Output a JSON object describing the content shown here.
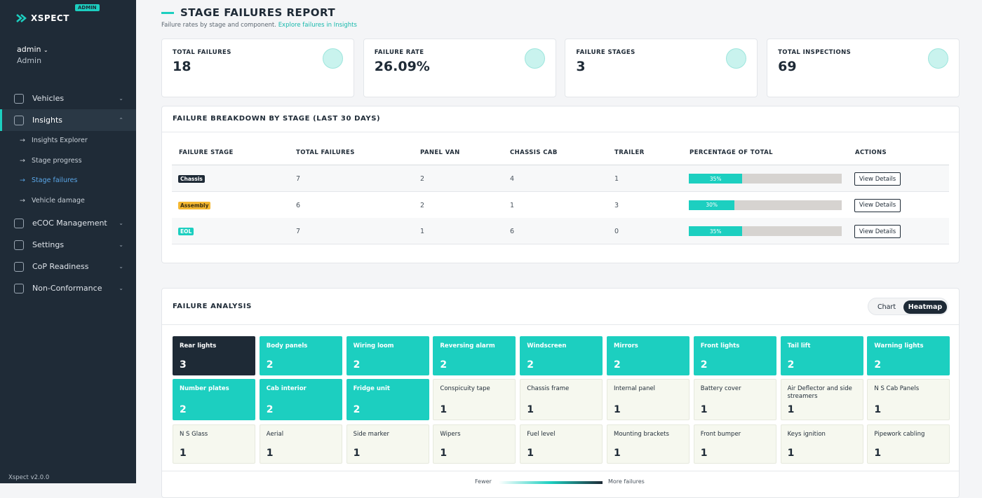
{
  "sidebar": {
    "brand": "XSPECT",
    "badge": "ADMIN",
    "user": "admin",
    "role": "Admin",
    "nav": [
      {
        "label": "Vehicles"
      },
      {
        "label": "Insights",
        "children": [
          "Insights Explorer",
          "Stage progress",
          "Stage failures",
          "Vehicle damage"
        ]
      },
      {
        "label": "eCOC Management"
      },
      {
        "label": "Settings"
      },
      {
        "label": "CoP Readiness"
      },
      {
        "label": "Non-Conformance"
      }
    ],
    "version": "Xspect v2.0.0"
  },
  "header": {
    "title": "STAGE FAILURES REPORT",
    "subtitle": "Failure rates by stage and component.",
    "link": "Explore failures in Insights"
  },
  "kpis": [
    {
      "label": "TOTAL FAILURES",
      "value": 18
    },
    {
      "label": "FAILURE RATE",
      "value": "26.09%"
    },
    {
      "label": "FAILURE STAGES",
      "value": 3
    },
    {
      "label": "TOTAL INSPECTIONS",
      "value": 69
    }
  ],
  "table": {
    "title": "FAILURE BREAKDOWN BY STAGE (LAST 30 DAYS)",
    "columns": [
      "FAILURE STAGE",
      "TOTAL FAILURES",
      "PANEL VAN",
      "CHASSIS CAB",
      "TRAILER",
      "PERCENTAGE OF TOTAL",
      "ACTIONS"
    ],
    "rows": [
      {
        "stage": "Chassis",
        "total": 7,
        "panel_van": 2,
        "chassis_cab": 4,
        "trailer": 1,
        "percent": 35,
        "percent_label": "35%",
        "action": "View Details"
      },
      {
        "stage": "Assembly",
        "total": 6,
        "panel_van": 2,
        "chassis_cab": 1,
        "trailer": 3,
        "percent": 30,
        "percent_label": "30%",
        "action": "View Details"
      },
      {
        "stage": "EOL",
        "total": 7,
        "panel_van": 1,
        "chassis_cab": 6,
        "trailer": 0,
        "percent": 35,
        "percent_label": "35%",
        "action": "View Details"
      }
    ]
  },
  "analysis": {
    "title": "FAILURE ANALYSIS",
    "toggle": [
      "Chart",
      "Heatmap"
    ],
    "cells": [
      {
        "name": "Rear lights",
        "count": 3
      },
      {
        "name": "Body panels",
        "count": 2
      },
      {
        "name": "Wiring loom",
        "count": 2
      },
      {
        "name": "Reversing alarm",
        "count": 2
      },
      {
        "name": "Windscreen",
        "count": 2
      },
      {
        "name": "Mirrors",
        "count": 2
      },
      {
        "name": "Front lights",
        "count": 2
      },
      {
        "name": "Tail lift",
        "count": 2
      },
      {
        "name": "Warning lights",
        "count": 2
      },
      {
        "name": "Number plates",
        "count": 2
      },
      {
        "name": "Cab interior",
        "count": 2
      },
      {
        "name": "Fridge unit",
        "count": 2
      },
      {
        "name": "Conspicuity tape",
        "count": 1
      },
      {
        "name": "Chassis frame",
        "count": 1
      },
      {
        "name": "Internal panel",
        "count": 1
      },
      {
        "name": "Battery cover",
        "count": 1
      },
      {
        "name": "Air Deflector and side streamers",
        "count": 1
      },
      {
        "name": "N S Cab Panels",
        "count": 1
      },
      {
        "name": "N S Glass",
        "count": 1
      },
      {
        "name": "Aerial",
        "count": 1
      },
      {
        "name": "Side marker",
        "count": 1
      },
      {
        "name": "Wipers",
        "count": 1
      },
      {
        "name": "Fuel level",
        "count": 1
      },
      {
        "name": "Mounting brackets",
        "count": 1
      },
      {
        "name": "Front bumper",
        "count": 1
      },
      {
        "name": "Keys ignition",
        "count": 1
      },
      {
        "name": "Pipework cabling",
        "count": 1
      }
    ],
    "legend": {
      "low": "Fewer",
      "high": "More failures"
    }
  }
}
